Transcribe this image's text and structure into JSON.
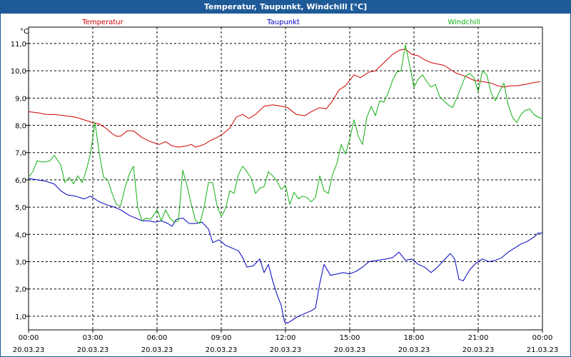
{
  "window": {
    "title": "Temperatur, Taupunkt, Windchill [°C]"
  },
  "colors": {
    "temperatur": "#d00000",
    "taupunkt": "#0000c0",
    "windchill": "#10b010",
    "titlebar": "#1e5a98"
  },
  "chart_data": {
    "type": "line",
    "title": "Temperatur, Taupunkt, Windchill [°C]",
    "ylabel": "°C",
    "ylim": [
      0.5,
      11.6
    ],
    "xlim_hours": [
      0,
      24
    ],
    "yticks": [
      {
        "value": 1,
        "label": "1,0"
      },
      {
        "value": 2,
        "label": "2,0"
      },
      {
        "value": 3,
        "label": "3,0"
      },
      {
        "value": 4,
        "label": "4,0"
      },
      {
        "value": 5,
        "label": "5,0"
      },
      {
        "value": 6,
        "label": "6,0"
      },
      {
        "value": 7,
        "label": "7,0"
      },
      {
        "value": 8,
        "label": "8,0"
      },
      {
        "value": 9,
        "label": "9,0"
      },
      {
        "value": 10,
        "label": "10,0"
      },
      {
        "value": 11,
        "label": "11,0"
      }
    ],
    "xticks": [
      {
        "hour": 0,
        "time": "00:00",
        "date": "20.03.23"
      },
      {
        "hour": 3,
        "time": "03:00",
        "date": "20.03.23"
      },
      {
        "hour": 6,
        "time": "06:00",
        "date": "20.03.23"
      },
      {
        "hour": 9,
        "time": "09:00",
        "date": "20.03.23"
      },
      {
        "hour": 12,
        "time": "12:00",
        "date": "20.03.23"
      },
      {
        "hour": 15,
        "time": "15:00",
        "date": "20.03.23"
      },
      {
        "hour": 18,
        "time": "18:00",
        "date": "20.03.23"
      },
      {
        "hour": 21,
        "time": "21:00",
        "date": "20.03.23"
      },
      {
        "hour": 24,
        "time": "00:00",
        "date": "21.03.23"
      }
    ],
    "grid": true,
    "series": [
      {
        "name": "Temperatur",
        "key": "temperatur",
        "points": [
          [
            0,
            8.5
          ],
          [
            0.5,
            8.45
          ],
          [
            0.8,
            8.4
          ],
          [
            1.2,
            8.4
          ],
          [
            1.7,
            8.35
          ],
          [
            2.2,
            8.3
          ],
          [
            2.6,
            8.2
          ],
          [
            3.0,
            8.1
          ],
          [
            3.3,
            8.05
          ],
          [
            3.6,
            7.9
          ],
          [
            3.9,
            7.7
          ],
          [
            4.1,
            7.6
          ],
          [
            4.3,
            7.6
          ],
          [
            4.6,
            7.8
          ],
          [
            4.9,
            7.8
          ],
          [
            5.3,
            7.55
          ],
          [
            5.7,
            7.4
          ],
          [
            6.1,
            7.3
          ],
          [
            6.4,
            7.4
          ],
          [
            6.7,
            7.25
          ],
          [
            7.0,
            7.2
          ],
          [
            7.4,
            7.25
          ],
          [
            7.6,
            7.3
          ],
          [
            7.8,
            7.2
          ],
          [
            8.2,
            7.3
          ],
          [
            8.5,
            7.45
          ],
          [
            8.8,
            7.55
          ],
          [
            9.1,
            7.7
          ],
          [
            9.4,
            7.9
          ],
          [
            9.7,
            8.3
          ],
          [
            10.0,
            8.4
          ],
          [
            10.3,
            8.25
          ],
          [
            10.6,
            8.4
          ],
          [
            11.0,
            8.7
          ],
          [
            11.4,
            8.75
          ],
          [
            11.8,
            8.7
          ],
          [
            12.1,
            8.65
          ],
          [
            12.5,
            8.4
          ],
          [
            12.9,
            8.35
          ],
          [
            13.2,
            8.5
          ],
          [
            13.6,
            8.65
          ],
          [
            13.9,
            8.6
          ],
          [
            14.2,
            8.9
          ],
          [
            14.5,
            9.3
          ],
          [
            14.8,
            9.45
          ],
          [
            15.2,
            9.85
          ],
          [
            15.5,
            9.75
          ],
          [
            15.9,
            9.95
          ],
          [
            16.2,
            10.0
          ],
          [
            16.6,
            10.3
          ],
          [
            17.0,
            10.6
          ],
          [
            17.3,
            10.75
          ],
          [
            17.6,
            10.8
          ],
          [
            17.9,
            10.6
          ],
          [
            18.2,
            10.55
          ],
          [
            18.5,
            10.4
          ],
          [
            18.8,
            10.3
          ],
          [
            19.1,
            10.25
          ],
          [
            19.4,
            10.2
          ],
          [
            19.7,
            10.05
          ],
          [
            20.0,
            9.9
          ],
          [
            20.4,
            9.8
          ],
          [
            20.8,
            9.65
          ],
          [
            21.2,
            9.6
          ],
          [
            21.6,
            9.55
          ],
          [
            21.9,
            9.45
          ],
          [
            22.2,
            9.4
          ],
          [
            22.5,
            9.45
          ],
          [
            22.8,
            9.45
          ],
          [
            23.2,
            9.5
          ],
          [
            23.5,
            9.55
          ],
          [
            23.9,
            9.6
          ]
        ]
      },
      {
        "name": "Taupunkt",
        "key": "taupunkt",
        "points": [
          [
            0,
            6.05
          ],
          [
            0.4,
            6.0
          ],
          [
            0.8,
            5.95
          ],
          [
            1.2,
            5.85
          ],
          [
            1.5,
            5.6
          ],
          [
            1.8,
            5.45
          ],
          [
            2.2,
            5.4
          ],
          [
            2.6,
            5.3
          ],
          [
            2.9,
            5.4
          ],
          [
            3.3,
            5.2
          ],
          [
            3.6,
            5.1
          ],
          [
            4.0,
            5.0
          ],
          [
            4.3,
            4.9
          ],
          [
            4.7,
            4.7
          ],
          [
            5.0,
            4.6
          ],
          [
            5.3,
            4.5
          ],
          [
            5.6,
            4.5
          ],
          [
            5.9,
            4.45
          ],
          [
            6.2,
            4.5
          ],
          [
            6.5,
            4.4
          ],
          [
            6.7,
            4.3
          ],
          [
            6.9,
            4.55
          ],
          [
            7.2,
            4.6
          ],
          [
            7.5,
            4.4
          ],
          [
            7.8,
            4.4
          ],
          [
            8.1,
            4.45
          ],
          [
            8.4,
            4.2
          ],
          [
            8.6,
            3.7
          ],
          [
            8.9,
            3.8
          ],
          [
            9.2,
            3.6
          ],
          [
            9.5,
            3.5
          ],
          [
            9.8,
            3.4
          ],
          [
            10.0,
            3.15
          ],
          [
            10.2,
            2.8
          ],
          [
            10.5,
            2.85
          ],
          [
            10.8,
            3.1
          ],
          [
            11.0,
            2.6
          ],
          [
            11.2,
            2.9
          ],
          [
            11.4,
            2.3
          ],
          [
            11.6,
            1.8
          ],
          [
            11.8,
            1.4
          ],
          [
            11.95,
            0.8
          ],
          [
            12.1,
            0.75
          ],
          [
            12.3,
            0.85
          ],
          [
            12.6,
            1.0
          ],
          [
            12.9,
            1.1
          ],
          [
            13.2,
            1.2
          ],
          [
            13.4,
            1.3
          ],
          [
            13.6,
            2.2
          ],
          [
            13.8,
            2.9
          ],
          [
            14.1,
            2.5
          ],
          [
            14.4,
            2.55
          ],
          [
            14.7,
            2.6
          ],
          [
            15.0,
            2.55
          ],
          [
            15.3,
            2.65
          ],
          [
            15.6,
            2.8
          ],
          [
            15.9,
            3.0
          ],
          [
            16.3,
            3.05
          ],
          [
            16.7,
            3.1
          ],
          [
            17.0,
            3.15
          ],
          [
            17.3,
            3.35
          ],
          [
            17.6,
            3.05
          ],
          [
            17.9,
            3.1
          ],
          [
            18.2,
            2.9
          ],
          [
            18.5,
            2.8
          ],
          [
            18.8,
            2.6
          ],
          [
            19.1,
            2.8
          ],
          [
            19.4,
            3.05
          ],
          [
            19.7,
            3.3
          ],
          [
            19.9,
            3.1
          ],
          [
            20.1,
            2.35
          ],
          [
            20.3,
            2.3
          ],
          [
            20.6,
            2.7
          ],
          [
            20.9,
            2.95
          ],
          [
            21.2,
            3.1
          ],
          [
            21.5,
            3.0
          ],
          [
            21.8,
            3.05
          ],
          [
            22.1,
            3.15
          ],
          [
            22.4,
            3.35
          ],
          [
            22.7,
            3.5
          ],
          [
            23.0,
            3.65
          ],
          [
            23.3,
            3.75
          ],
          [
            23.6,
            3.9
          ],
          [
            23.8,
            4.05
          ],
          [
            24.0,
            4.05
          ]
        ]
      },
      {
        "name": "Windchill",
        "key": "windchill",
        "points": [
          [
            0,
            6.1
          ],
          [
            0.2,
            6.3
          ],
          [
            0.4,
            6.7
          ],
          [
            0.7,
            6.65
          ],
          [
            1.0,
            6.7
          ],
          [
            1.2,
            6.9
          ],
          [
            1.5,
            6.55
          ],
          [
            1.7,
            5.9
          ],
          [
            1.9,
            6.1
          ],
          [
            2.1,
            5.85
          ],
          [
            2.3,
            6.15
          ],
          [
            2.5,
            5.9
          ],
          [
            2.7,
            6.35
          ],
          [
            2.9,
            7.0
          ],
          [
            3.1,
            8.1
          ],
          [
            3.3,
            7.0
          ],
          [
            3.5,
            6.1
          ],
          [
            3.7,
            6.0
          ],
          [
            3.9,
            5.5
          ],
          [
            4.1,
            5.1
          ],
          [
            4.3,
            5.05
          ],
          [
            4.5,
            5.7
          ],
          [
            4.7,
            6.2
          ],
          [
            4.9,
            6.5
          ],
          [
            5.1,
            5.0
          ],
          [
            5.3,
            4.5
          ],
          [
            5.5,
            4.6
          ],
          [
            5.7,
            4.55
          ],
          [
            6.0,
            4.9
          ],
          [
            6.2,
            4.5
          ],
          [
            6.4,
            4.9
          ],
          [
            6.6,
            4.6
          ],
          [
            6.8,
            4.45
          ],
          [
            7.0,
            4.5
          ],
          [
            7.2,
            6.35
          ],
          [
            7.4,
            5.8
          ],
          [
            7.6,
            5.1
          ],
          [
            7.8,
            4.5
          ],
          [
            8.0,
            4.4
          ],
          [
            8.2,
            5.0
          ],
          [
            8.4,
            5.9
          ],
          [
            8.6,
            5.9
          ],
          [
            8.8,
            5.05
          ],
          [
            9.0,
            4.65
          ],
          [
            9.2,
            4.95
          ],
          [
            9.4,
            5.6
          ],
          [
            9.6,
            5.5
          ],
          [
            9.8,
            6.2
          ],
          [
            10.0,
            6.5
          ],
          [
            10.2,
            6.3
          ],
          [
            10.4,
            6.05
          ],
          [
            10.6,
            5.5
          ],
          [
            10.8,
            5.7
          ],
          [
            11.0,
            5.75
          ],
          [
            11.2,
            6.3
          ],
          [
            11.4,
            6.15
          ],
          [
            11.6,
            5.95
          ],
          [
            11.8,
            5.65
          ],
          [
            12.0,
            5.8
          ],
          [
            12.2,
            5.1
          ],
          [
            12.4,
            5.55
          ],
          [
            12.6,
            5.3
          ],
          [
            12.8,
            5.4
          ],
          [
            13.0,
            5.35
          ],
          [
            13.2,
            5.2
          ],
          [
            13.4,
            5.35
          ],
          [
            13.6,
            6.15
          ],
          [
            13.8,
            5.6
          ],
          [
            14.0,
            5.5
          ],
          [
            14.2,
            6.2
          ],
          [
            14.4,
            6.6
          ],
          [
            14.6,
            7.3
          ],
          [
            14.8,
            6.95
          ],
          [
            15.0,
            7.5
          ],
          [
            15.2,
            8.2
          ],
          [
            15.4,
            7.6
          ],
          [
            15.6,
            7.3
          ],
          [
            15.8,
            8.3
          ],
          [
            16.0,
            8.7
          ],
          [
            16.2,
            8.35
          ],
          [
            16.4,
            8.9
          ],
          [
            16.6,
            8.85
          ],
          [
            16.8,
            9.2
          ],
          [
            17.0,
            9.65
          ],
          [
            17.2,
            9.95
          ],
          [
            17.4,
            10.0
          ],
          [
            17.6,
            10.95
          ],
          [
            17.8,
            10.2
          ],
          [
            18.0,
            9.4
          ],
          [
            18.2,
            9.7
          ],
          [
            18.4,
            9.85
          ],
          [
            18.6,
            9.6
          ],
          [
            18.8,
            9.4
          ],
          [
            19.0,
            9.5
          ],
          [
            19.2,
            9.05
          ],
          [
            19.4,
            8.9
          ],
          [
            19.6,
            8.75
          ],
          [
            19.8,
            8.65
          ],
          [
            20.0,
            9.0
          ],
          [
            20.2,
            9.4
          ],
          [
            20.4,
            9.8
          ],
          [
            20.6,
            9.9
          ],
          [
            20.8,
            9.75
          ],
          [
            21.0,
            9.25
          ],
          [
            21.2,
            10.0
          ],
          [
            21.4,
            9.85
          ],
          [
            21.6,
            9.2
          ],
          [
            21.8,
            8.9
          ],
          [
            22.0,
            9.25
          ],
          [
            22.2,
            9.55
          ],
          [
            22.4,
            8.75
          ],
          [
            22.6,
            8.3
          ],
          [
            22.8,
            8.1
          ],
          [
            23.0,
            8.4
          ],
          [
            23.2,
            8.55
          ],
          [
            23.4,
            8.6
          ],
          [
            23.6,
            8.4
          ],
          [
            23.8,
            8.3
          ],
          [
            24.0,
            8.25
          ]
        ]
      }
    ]
  }
}
